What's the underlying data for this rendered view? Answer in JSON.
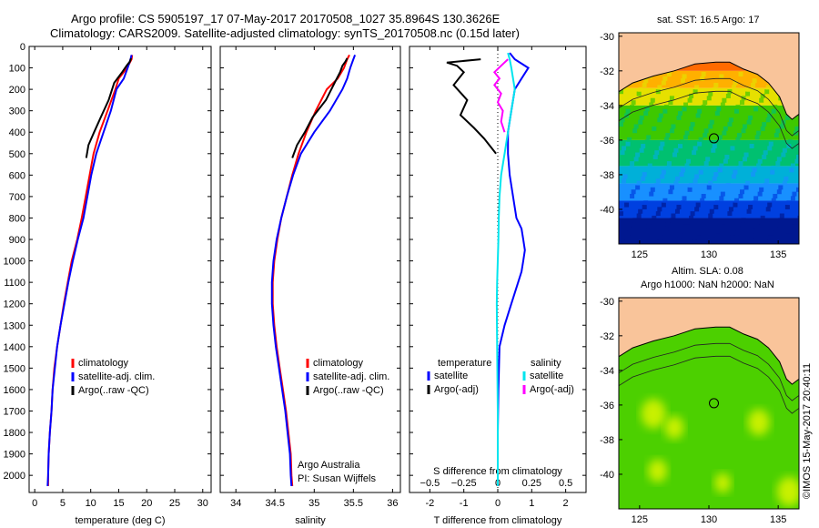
{
  "header": {
    "line1": "Argo profile: CS 5905197_17 07-May-2017 20170508_1027 35.8964S 130.3626E",
    "line2": "Climatology: CARS2009. Satellite-adjusted climatology: synTS_20170508.nc (0.15d later)"
  },
  "side_stamp": "©IMOS 15-May-2017 20:40:11",
  "colors": {
    "climatology": "#ff0000",
    "satellite": "#0000ff",
    "argo": "#000000",
    "salinity_satellite": "#00e5ee",
    "salinity_argo": "#ff00ff",
    "land": "#f9c49a"
  },
  "chart_data": [
    {
      "id": "temperature",
      "type": "line",
      "xlabel": "temperature (deg C)",
      "ylabel": "",
      "xlim": [
        -1,
        31.5
      ],
      "ylim": [
        2080,
        0
      ],
      "xticks": [
        0,
        5,
        10,
        15,
        20,
        25,
        30
      ],
      "yticks": [
        0,
        100,
        200,
        300,
        400,
        500,
        600,
        700,
        800,
        900,
        1000,
        1100,
        1200,
        1300,
        1400,
        1500,
        1600,
        1700,
        1800,
        1900,
        2000
      ],
      "legend": [
        "climatology",
        "satellite-adj. clim.",
        "Argo(..raw -QC)"
      ],
      "legend_position": "lower-center",
      "series": [
        {
          "name": "climatology",
          "color": "#ff0000",
          "x": [
            17.4,
            17.3,
            16.5,
            15.0,
            14.4,
            13.0,
            11.6,
            10.5,
            9.8,
            9.1,
            8.4,
            7.6,
            6.6,
            5.9,
            5.2,
            4.6,
            4.0,
            3.5,
            3.2,
            3.0,
            2.7,
            2.5,
            2.4,
            2.4
          ],
          "y": [
            40,
            60,
            100,
            150,
            200,
            300,
            400,
            500,
            600,
            700,
            800,
            900,
            1000,
            1100,
            1200,
            1300,
            1400,
            1500,
            1600,
            1700,
            1800,
            1900,
            2000,
            2050
          ]
        },
        {
          "name": "satellite-adj. clim.",
          "color": "#0000ff",
          "x": [
            17.3,
            17.1,
            16.6,
            15.9,
            14.6,
            13.6,
            12.3,
            11.0,
            10.1,
            9.4,
            8.7,
            7.7,
            6.8,
            6.0,
            5.3,
            4.6,
            4.0,
            3.6,
            3.2,
            3.0,
            2.7,
            2.5,
            2.4,
            2.3
          ],
          "y": [
            40,
            60,
            100,
            150,
            200,
            300,
            400,
            500,
            600,
            700,
            800,
            900,
            1000,
            1100,
            1200,
            1300,
            1400,
            1500,
            1600,
            1700,
            1800,
            1900,
            2000,
            2050
          ]
        },
        {
          "name": "Argo(..raw -QC)",
          "color": "#000000",
          "x": [
            17.2,
            17.0,
            16.4,
            15.6,
            14.2,
            13.2,
            11.8,
            10.6,
            9.6,
            9.2
          ],
          "y": [
            55,
            70,
            90,
            120,
            170,
            250,
            330,
            400,
            460,
            520
          ]
        }
      ]
    },
    {
      "id": "salinity",
      "type": "line",
      "xlabel": "salinity",
      "ylabel": "",
      "xlim": [
        33.8,
        36.1
      ],
      "ylim": [
        2080,
        0
      ],
      "xticks": [
        34,
        34.5,
        35,
        35.5,
        36
      ],
      "legend": [
        "climatology",
        "satellite-adj. clim.",
        "Argo(..raw -QC)"
      ],
      "legend_position": "lower-right",
      "annotation_lines": [
        "Argo Australia",
        "PI: Susan Wijffels"
      ],
      "series": [
        {
          "name": "climatology",
          "color": "#ff0000",
          "x": [
            35.45,
            35.42,
            35.38,
            35.3,
            35.16,
            35.02,
            34.9,
            34.8,
            34.72,
            34.65,
            34.58,
            34.53,
            34.49,
            34.47,
            34.47,
            34.49,
            34.52,
            34.56,
            34.6,
            34.64,
            34.67,
            34.7,
            34.71,
            34.72
          ],
          "y": [
            40,
            60,
            100,
            150,
            200,
            300,
            400,
            500,
            600,
            700,
            800,
            900,
            1000,
            1100,
            1200,
            1300,
            1400,
            1500,
            1600,
            1700,
            1800,
            1900,
            2000,
            2050
          ]
        },
        {
          "name": "satellite-adj. clim.",
          "color": "#0000ff",
          "x": [
            35.52,
            35.5,
            35.46,
            35.42,
            35.36,
            35.2,
            35.0,
            34.83,
            34.73,
            34.65,
            34.58,
            34.52,
            34.48,
            34.46,
            34.46,
            34.48,
            34.51,
            34.55,
            34.59,
            34.63,
            34.66,
            34.69,
            34.7,
            34.71
          ],
          "y": [
            40,
            60,
            100,
            150,
            200,
            300,
            400,
            500,
            600,
            700,
            800,
            900,
            1000,
            1100,
            1200,
            1300,
            1400,
            1500,
            1600,
            1700,
            1800,
            1900,
            2000,
            2050
          ]
        },
        {
          "name": "Argo(..raw -QC)",
          "color": "#000000",
          "x": [
            35.42,
            35.4,
            35.36,
            35.33,
            35.26,
            35.15,
            34.98,
            34.88,
            34.78,
            34.72
          ],
          "y": [
            55,
            70,
            90,
            120,
            170,
            250,
            330,
            400,
            460,
            520
          ]
        }
      ]
    },
    {
      "id": "difference",
      "type": "line",
      "xlabel": "T difference from climatology",
      "xlabel2": "S difference from climatology",
      "xlim": [
        -2.6,
        2.6
      ],
      "ylim": [
        2080,
        0
      ],
      "xticks": [
        -2,
        -1,
        0,
        1,
        2
      ],
      "xticks2": [
        -0.5,
        -0.25,
        0,
        0.25,
        0.5
      ],
      "xticks2_labels": [
        "−0.5",
        "−0.25",
        "0",
        "0.25",
        "0.5"
      ],
      "legend_headers": [
        "temperature",
        "salinity"
      ],
      "legend": [
        "satellite",
        "Argo(-adj)",
        "satellite",
        "Argo(-adj)"
      ],
      "legend_position": "lower-center",
      "series": [
        {
          "name": "satellite",
          "color": "#0000ff",
          "x": [
            0.35,
            0.5,
            0.9,
            0.7,
            0.5,
            0.4,
            0.3,
            0.3,
            0.35,
            0.45,
            0.55,
            0.7,
            0.75,
            0.8,
            0.75,
            0.7,
            0.6,
            0.4,
            0.2,
            0.05,
            0.02,
            0.0,
            0.0
          ],
          "y": [
            30,
            60,
            100,
            150,
            200,
            300,
            400,
            500,
            600,
            700,
            800,
            850,
            900,
            950,
            1000,
            1050,
            1100,
            1200,
            1300,
            1400,
            1600,
            1800,
            2050
          ]
        },
        {
          "name": "Argo(-adj)",
          "color": "#000000",
          "x": [
            -0.5,
            -1.5,
            -1.2,
            -1.0,
            -1.3,
            -0.9,
            -1.1,
            -0.7,
            -0.4,
            -0.05
          ],
          "y": [
            60,
            75,
            90,
            120,
            180,
            250,
            320,
            380,
            430,
            500
          ]
        },
        {
          "name": "satellite",
          "color": "#00e5ee",
          "x": [
            0.3,
            0.35,
            0.4,
            0.45,
            0.5,
            0.4,
            0.3,
            0.2,
            0.1,
            0.05,
            0.03,
            0.02,
            0.0,
            -0.02,
            -0.03,
            -0.02,
            0.0,
            0.0
          ],
          "y": [
            30,
            60,
            100,
            150,
            200,
            300,
            400,
            500,
            600,
            700,
            800,
            900,
            1000,
            1100,
            1200,
            1400,
            1700,
            2050
          ]
        },
        {
          "name": "Argo(-adj)",
          "color": "#ff00ff",
          "x": [
            0.3,
            0.1,
            -0.1,
            0.05,
            -0.1,
            0.1,
            0.0,
            0.15,
            0.1,
            0.2
          ],
          "y": [
            60,
            90,
            120,
            150,
            180,
            220,
            260,
            300,
            350,
            400
          ]
        }
      ]
    },
    {
      "id": "sst_map",
      "type": "heatmap",
      "title": "sat. SST: 16.5 Argo: 17",
      "xlim": [
        123.5,
        136.5
      ],
      "ylim": [
        -42,
        -29.8
      ],
      "xticks": [
        125,
        130,
        135
      ],
      "yticks": [
        -30,
        -32,
        -34,
        -36,
        -38,
        -40
      ],
      "argo_position": {
        "lon": 130.3626,
        "lat": -35.8964
      },
      "bands": [
        {
          "lat_from": -33,
          "lat_to": -32,
          "color": "#ffb000"
        },
        {
          "lat_from": -34,
          "lat_to": -33,
          "color": "#e6e000"
        },
        {
          "lat_from": -36,
          "lat_to": -34,
          "color": "#3ec800"
        },
        {
          "lat_from": -37.5,
          "lat_to": -36,
          "color": "#00c070"
        },
        {
          "lat_from": -38.5,
          "lat_to": -37.5,
          "color": "#00b0d8"
        },
        {
          "lat_from": -39.5,
          "lat_to": -38.5,
          "color": "#1890ff"
        },
        {
          "lat_from": -40.5,
          "lat_to": -39.5,
          "color": "#0040e0"
        },
        {
          "lat_from": -42,
          "lat_to": -40.5,
          "color": "#001890"
        }
      ]
    },
    {
      "id": "sla_map",
      "type": "heatmap",
      "title_lines": [
        "Altim. SLA: 0.08",
        "Argo h1000: NaN h2000: NaN"
      ],
      "xlim": [
        123.5,
        136.5
      ],
      "ylim": [
        -42,
        -29.8
      ],
      "xticks": [
        125,
        130,
        135
      ],
      "yticks": [
        -30,
        -32,
        -34,
        -36,
        -38,
        -40
      ],
      "argo_position": {
        "lon": 130.3626,
        "lat": -35.8964
      },
      "base_color": "#4cd000",
      "highlights": [
        {
          "lon": 126,
          "lat": -36.5,
          "r": 0.9
        },
        {
          "lon": 127.5,
          "lat": -37.3,
          "r": 0.7
        },
        {
          "lon": 133.6,
          "lat": -37.0,
          "r": 0.8
        },
        {
          "lon": 135.8,
          "lat": -41.0,
          "r": 0.9
        },
        {
          "lon": 126.3,
          "lat": -39.8,
          "r": 0.7
        },
        {
          "lon": 131.0,
          "lat": -40.5,
          "r": 0.6
        }
      ]
    }
  ]
}
